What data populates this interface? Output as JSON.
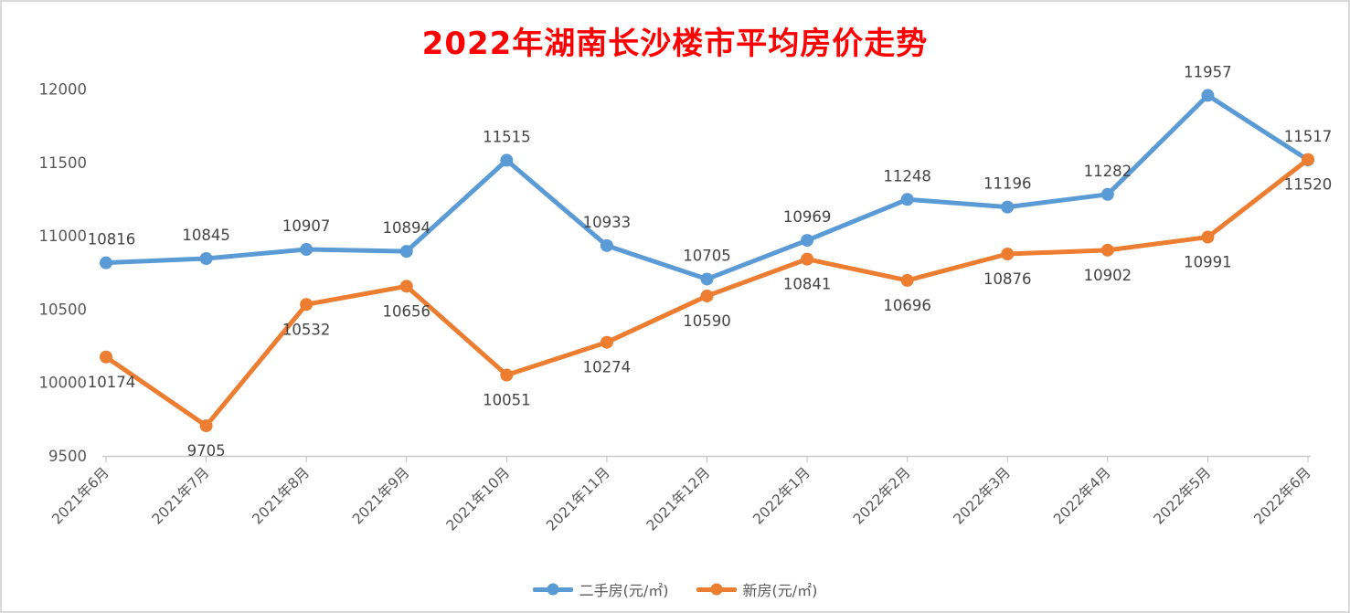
{
  "page": {
    "title": "2022年湖南长沙楼市平均房价走势"
  },
  "chart_data": {
    "type": "line",
    "title": "2022年湖南长沙楼市平均房价走势",
    "title_color": "#ff0000",
    "categories": [
      "2021年6月",
      "2021年7月",
      "2021年8月",
      "2021年9月",
      "2021年10月",
      "2021年11月",
      "2021年12月",
      "2022年1月",
      "2022年2月",
      "2022年3月",
      "2022年4月",
      "2022年5月",
      "2022年6月"
    ],
    "series": [
      {
        "name": "二手房(元/㎡)",
        "color": "#5b9bd5",
        "label_position": "above",
        "values": [
          10816,
          10845,
          10907,
          10894,
          11515,
          10933,
          10705,
          10969,
          11248,
          11196,
          11282,
          11957,
          11517
        ]
      },
      {
        "name": "新房(元/㎡)",
        "color": "#ed7d31",
        "label_position": "below",
        "values": [
          10174,
          9705,
          10532,
          10656,
          10051,
          10274,
          10590,
          10841,
          10696,
          10876,
          10902,
          10991,
          11520
        ]
      }
    ],
    "y_axis": {
      "min": 9500,
      "max": 12000,
      "step": 500,
      "ticks": [
        12000,
        11500,
        11000,
        10500,
        10000,
        9500
      ]
    },
    "x_axis": {
      "label_rotation_deg": 45
    },
    "grid": "off",
    "legend_position": "bottom",
    "data_labels": "on",
    "axis_text_color": "#595959",
    "data_label_color": "#444444",
    "axis_line_color": "#c9c9c9"
  },
  "legend": {
    "items": [
      {
        "label": "二手房(元/㎡)",
        "color": "#5b9bd5"
      },
      {
        "label": "新房(元/㎡)",
        "color": "#ed7d31"
      }
    ]
  }
}
